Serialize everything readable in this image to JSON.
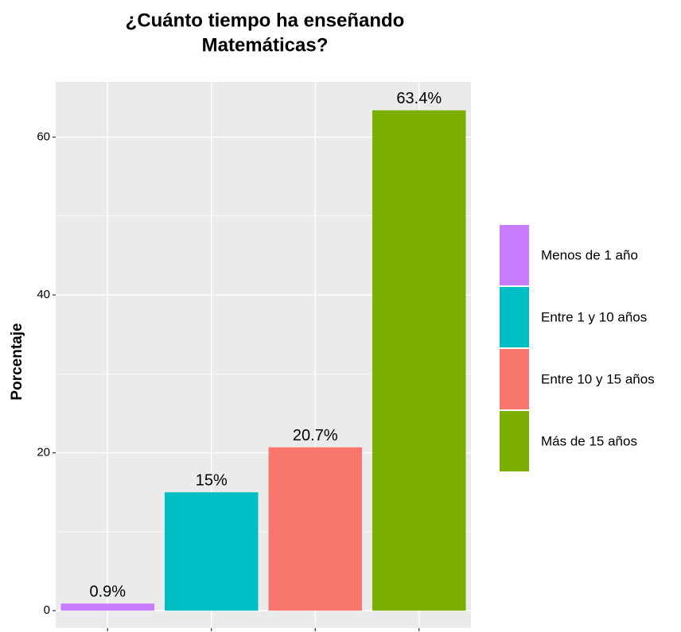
{
  "chart_data": {
    "type": "bar",
    "title": [
      "¿Cuánto tiempo ha enseñando",
      "Matemáticas?"
    ],
    "y_label": "Porcentaje",
    "categories": [
      "Menos de 1 año",
      "Entre 1 y 10 años",
      "Entre 10 y 15 años",
      "Más de 15 años"
    ],
    "values": [
      0.9,
      15,
      20.7,
      63.4
    ],
    "value_labels": [
      "0.9%",
      "15%",
      "20.7%",
      "63.4%"
    ],
    "colors": [
      "#C77CFF",
      "#00BFC4",
      "#F8766D",
      "#7CAE00"
    ],
    "ylim": [
      -2.2,
      67
    ],
    "yticks": [
      0,
      20,
      40,
      60
    ],
    "grid": true,
    "legend": "right"
  }
}
